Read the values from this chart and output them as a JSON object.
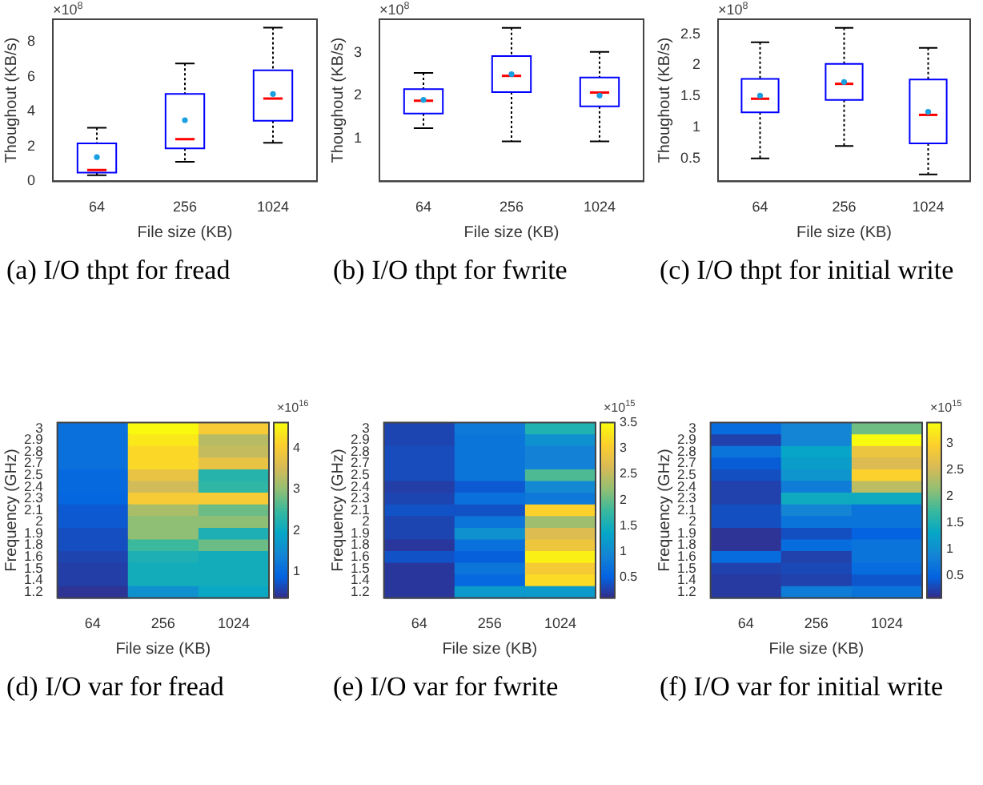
{
  "chart_data": [
    {
      "type": "box",
      "title": "(a) I/O thpt for fread",
      "xlabel": "File size (KB)",
      "ylabel": "Thoughout (KB/s)",
      "categories": [
        "64",
        "256",
        "1024"
      ],
      "ylim": [
        0,
        9.3
      ],
      "yticks": [
        0,
        2,
        4,
        6,
        8
      ],
      "annotations": [
        "×10$^{8}$"
      ],
      "boxes": [
        {
          "low": 0.35,
          "q1": 0.5,
          "median": 0.65,
          "q3": 2.18,
          "high": 3.07,
          "mean": 1.39
        },
        {
          "low": 1.12,
          "q1": 1.89,
          "median": 2.42,
          "q3": 5.01,
          "high": 6.76,
          "mean": 3.51
        },
        {
          "low": 2.21,
          "q1": 3.48,
          "median": 4.75,
          "q3": 6.37,
          "high": 8.82,
          "mean": 5.01
        }
      ]
    },
    {
      "type": "box",
      "title": "(b) I/O thpt for fwrite",
      "xlabel": "File size (KB)",
      "ylabel": "Thoughout (KB/s)",
      "categories": [
        "64",
        "256",
        "1024"
      ],
      "ylim": [
        0,
        3.78
      ],
      "yticks": [
        1,
        2,
        3
      ],
      "annotations": [
        "×10$^{8}$"
      ],
      "boxes": [
        {
          "low": 1.24,
          "q1": 1.58,
          "median": 1.88,
          "q3": 2.15,
          "high": 2.53,
          "mean": 1.9
        },
        {
          "low": 0.93,
          "q1": 2.08,
          "median": 2.46,
          "q3": 2.92,
          "high": 3.58,
          "mean": 2.5
        },
        {
          "low": 0.93,
          "q1": 1.75,
          "median": 2.07,
          "q3": 2.42,
          "high": 3.02,
          "mean": 2.0
        }
      ]
    },
    {
      "type": "box",
      "title": "(c) I/O thpt for initial write",
      "xlabel": "File size (KB)",
      "ylabel": "Thoughout (KB/s)",
      "categories": [
        "64",
        "256",
        "1024"
      ],
      "ylim": [
        0.13,
        2.74
      ],
      "yticks": [
        0.5,
        1,
        1.5,
        2,
        2.5
      ],
      "annotations": [
        "×10$^{8}$"
      ],
      "boxes": [
        {
          "low": 0.5,
          "q1": 1.24,
          "median": 1.46,
          "q3": 1.78,
          "high": 2.37,
          "mean": 1.51
        },
        {
          "low": 0.7,
          "q1": 1.44,
          "median": 1.7,
          "q3": 2.02,
          "high": 2.6,
          "mean": 1.73
        },
        {
          "low": 0.24,
          "q1": 0.74,
          "median": 1.2,
          "q3": 1.77,
          "high": 2.28,
          "mean": 1.25
        }
      ]
    },
    {
      "type": "heatmap",
      "title": "(d) I/O var for fread",
      "xlabel": "File size (KB)",
      "ylabel": "Frequency (GHz)",
      "categories": [
        "64",
        "256",
        "1024"
      ],
      "y_categories": [
        "3",
        "2.9",
        "2.8",
        "2.7",
        "2.5",
        "2.4",
        "2.3",
        "2.1",
        "2",
        "1.9",
        "1.8",
        "1.6",
        "1.5",
        "1.4",
        "1.2"
      ],
      "clim": [
        0.36,
        4.62
      ],
      "cticks": [
        1,
        2,
        3,
        4
      ],
      "annotations": [
        "×10$^{16}$"
      ],
      "cells": [
        [
          1.1,
          4.6,
          4.0
        ],
        [
          1.1,
          4.4,
          3.3
        ],
        [
          1.1,
          4.2,
          3.4
        ],
        [
          1.1,
          4.2,
          3.8
        ],
        [
          1.0,
          3.8,
          2.3
        ],
        [
          1.0,
          3.5,
          2.4
        ],
        [
          0.95,
          4.0,
          4.0
        ],
        [
          0.8,
          3.2,
          2.8
        ],
        [
          0.8,
          3.0,
          3.0
        ],
        [
          0.7,
          3.0,
          2.2
        ],
        [
          0.7,
          2.5,
          2.8
        ],
        [
          0.6,
          2.2,
          2.1
        ],
        [
          0.55,
          2.1,
          2.1
        ],
        [
          0.55,
          2.1,
          2.1
        ],
        [
          0.45,
          1.6,
          2.0
        ]
      ]
    },
    {
      "type": "heatmap",
      "title": "(e) I/O var for fwrite",
      "xlabel": "File size (KB)",
      "ylabel": "Frequency (GHz)",
      "categories": [
        "64",
        "256",
        "1024"
      ],
      "y_categories": [
        "3",
        "2.9",
        "2.8",
        "2.7",
        "2.5",
        "2.4",
        "2.3",
        "2.1",
        "2",
        "1.9",
        "1.8",
        "1.6",
        "1.5",
        "1.4",
        "1.2"
      ],
      "clim": [
        0.1,
        3.5
      ],
      "cticks": [
        0.5,
        1,
        1.5,
        2,
        2.5,
        3,
        3.5
      ],
      "annotations": [
        "×10$^{15}$"
      ],
      "cells": [
        [
          0.3,
          0.8,
          1.6
        ],
        [
          0.3,
          0.75,
          1.1
        ],
        [
          0.35,
          0.75,
          0.9
        ],
        [
          0.35,
          0.75,
          0.9
        ],
        [
          0.35,
          0.75,
          1.9
        ],
        [
          0.25,
          0.45,
          1.0
        ],
        [
          0.3,
          0.7,
          0.8
        ],
        [
          0.4,
          0.4,
          3.1
        ],
        [
          0.3,
          0.75,
          2.3
        ],
        [
          0.3,
          1.1,
          2.7
        ],
        [
          0.2,
          0.7,
          2.9
        ],
        [
          0.4,
          0.5,
          3.4
        ],
        [
          0.2,
          0.75,
          3.0
        ],
        [
          0.2,
          0.6,
          3.2
        ],
        [
          0.2,
          1.2,
          1.2
        ]
      ]
    },
    {
      "type": "heatmap",
      "title": "(f) I/O var for initial write",
      "xlabel": "File size (KB)",
      "ylabel": "Frequency (GHz)",
      "categories": [
        "64",
        "256",
        "1024"
      ],
      "y_categories": [
        "3",
        "2.9",
        "2.8",
        "2.7",
        "2.5",
        "2.4",
        "2.3",
        "2.1",
        "2",
        "1.9",
        "1.8",
        "1.6",
        "1.5",
        "1.4",
        "1.2"
      ],
      "clim": [
        0.08,
        3.4
      ],
      "cticks": [
        0.5,
        1,
        1.5,
        2,
        2.5,
        3
      ],
      "annotations": [
        "×10$^{15}$"
      ],
      "cells": [
        [
          0.6,
          0.9,
          2.0
        ],
        [
          0.25,
          0.9,
          3.4
        ],
        [
          0.7,
          1.3,
          2.8
        ],
        [
          0.45,
          1.2,
          2.6
        ],
        [
          0.35,
          1.1,
          3.0
        ],
        [
          0.25,
          0.8,
          2.4
        ],
        [
          0.25,
          1.4,
          1.4
        ],
        [
          0.35,
          0.9,
          0.7
        ],
        [
          0.35,
          0.7,
          0.7
        ],
        [
          0.15,
          0.35,
          0.5
        ],
        [
          0.15,
          0.6,
          0.7
        ],
        [
          0.6,
          0.25,
          0.7
        ],
        [
          0.25,
          0.3,
          0.6
        ],
        [
          0.2,
          0.25,
          0.4
        ],
        [
          0.2,
          0.8,
          0.7
        ]
      ]
    }
  ]
}
